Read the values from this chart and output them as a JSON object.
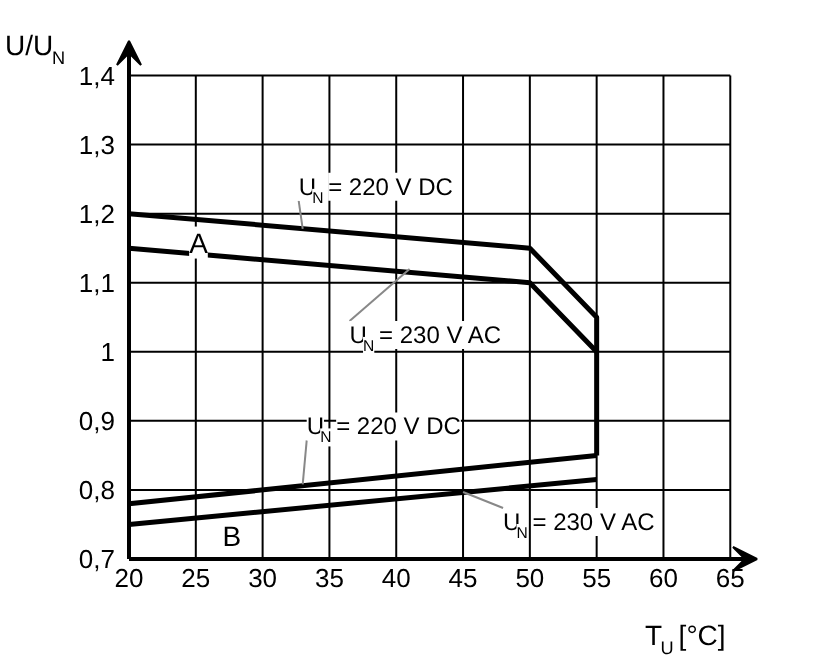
{
  "chart_data": {
    "type": "line",
    "xlabel": "T$_{U}$ [°C]",
    "ylabel": "U/U$_{N}$",
    "xlim": [
      20,
      67
    ],
    "ylim": [
      0.7,
      1.45
    ],
    "xticks": [
      20,
      25,
      30,
      35,
      40,
      45,
      50,
      55,
      60,
      65
    ],
    "yticks": [
      {
        "value": 0.7,
        "label": "0,7"
      },
      {
        "value": 0.8,
        "label": "0,8"
      },
      {
        "value": 0.9,
        "label": "0,9"
      },
      {
        "value": 1.0,
        "label": "1"
      },
      {
        "value": 1.1,
        "label": "1,1"
      },
      {
        "value": 1.2,
        "label": "1,2"
      },
      {
        "value": 1.3,
        "label": "1,3"
      },
      {
        "value": 1.4,
        "label": "1,4"
      }
    ],
    "grid": true,
    "marker": "none",
    "line_style": "solid",
    "series": [
      {
        "color": "#000000",
        "x": [
          20,
          50,
          55,
          55
        ],
        "values": [
          1.2,
          1.15,
          1.05,
          0.85
        ]
      },
      {
        "color": "#000000",
        "x": [
          20,
          50,
          55
        ],
        "values": [
          1.15,
          1.1,
          1.0
        ]
      },
      {
        "color": "#000000",
        "x": [
          20,
          55
        ],
        "values": [
          0.78,
          0.85
        ]
      },
      {
        "color": "#000000",
        "x": [
          20,
          55
        ],
        "values": [
          0.75,
          0.815
        ]
      }
    ],
    "annotations": [
      {
        "text": "U$_{N}$= 220 V DC",
        "x": 33,
        "y": 1.178
      },
      {
        "text": "U$_{N}$= 230 V AC",
        "x": 41,
        "y": 1.12
      },
      {
        "text": "U$_{N}$= 220 V DC",
        "x": 33,
        "y": 0.808
      },
      {
        "text": "U$_{N}$= 230 V AC",
        "x": 45,
        "y": 0.797
      },
      "A",
      "B"
    ]
  }
}
